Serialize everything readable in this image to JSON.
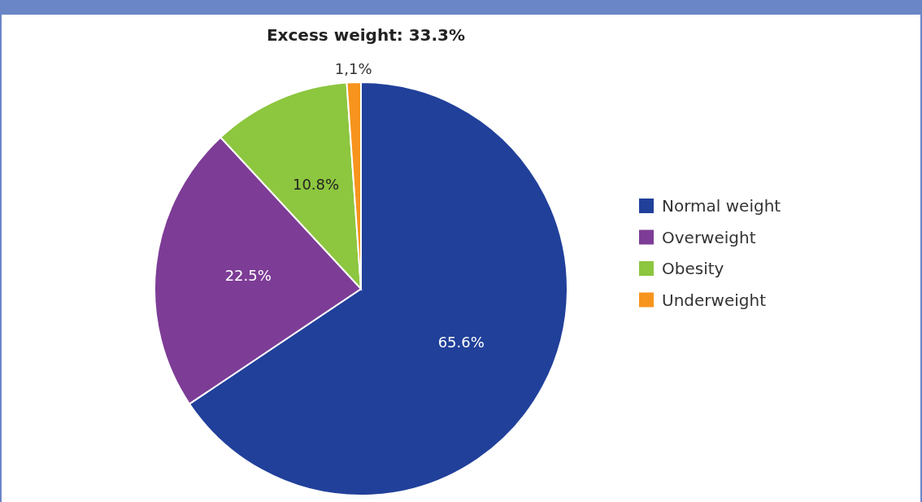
{
  "chart_data": {
    "type": "pie",
    "title": "Excess weight: 33.3%",
    "categories": [
      "Normal weight",
      "Overweight",
      "Obesity",
      "Underweight"
    ],
    "values": [
      65.6,
      22.5,
      10.8,
      1.1
    ],
    "value_labels": [
      "65.6%",
      "22.5%",
      "10.8%",
      "1,1%"
    ],
    "colors": [
      "#21409a",
      "#7d3c96",
      "#8dc63f",
      "#f7941d"
    ],
    "legend": "right"
  }
}
